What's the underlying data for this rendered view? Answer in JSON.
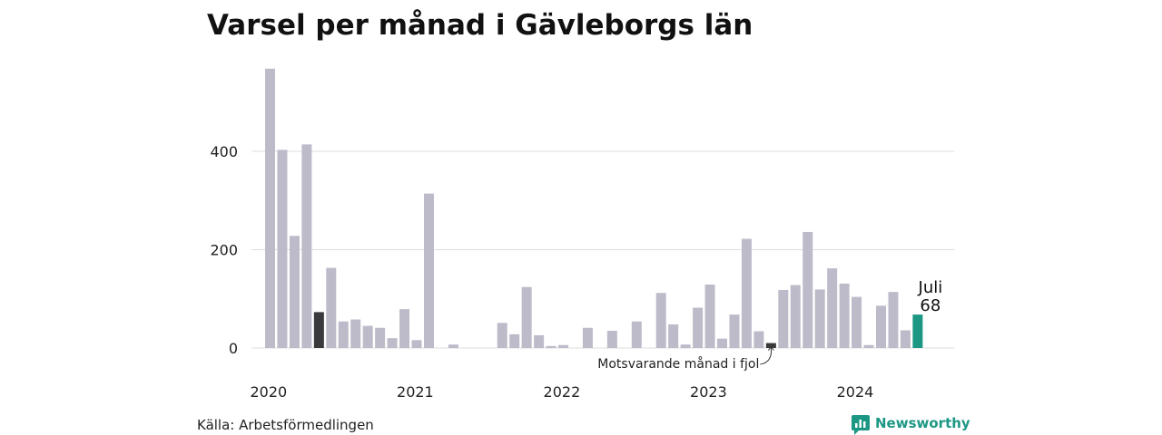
{
  "chart_data": {
    "type": "bar",
    "title": "Varsel per månad i Gävleborgs län",
    "xlabel": "",
    "ylabel": "",
    "ylim": [
      0,
      575
    ],
    "y_ticks": [
      0,
      200,
      400
    ],
    "x_ticks": [
      {
        "label": "2020",
        "index": 0
      },
      {
        "label": "2021",
        "index": 12
      },
      {
        "label": "2022",
        "index": 24
      },
      {
        "label": "2023",
        "index": 36
      },
      {
        "label": "2024",
        "index": 48
      }
    ],
    "values": [
      568,
      403,
      228,
      414,
      73,
      163,
      54,
      58,
      45,
      41,
      20,
      79,
      16,
      314,
      0,
      7,
      0,
      0,
      0,
      51,
      28,
      124,
      26,
      4,
      6,
      0,
      41,
      0,
      35,
      0,
      54,
      0,
      112,
      48,
      7,
      82,
      129,
      19,
      68,
      222,
      34,
      10,
      118,
      128,
      236,
      119,
      162,
      131,
      104,
      6,
      86,
      114,
      36,
      68
    ],
    "highlight_previous_year_index": 41,
    "highlight_previous_year_extra_index": 4,
    "highlight_current_index": 53,
    "highlight_label_month": "Juli",
    "highlight_label_value": "68",
    "annotation": "Motsvarande månad i fjol",
    "grid": true,
    "legend": "none",
    "colors": {
      "bar": "#bdbbc9",
      "previous": "#3a3a3c",
      "current": "#1b9784",
      "grid": "#dddddd",
      "brand": "#1b9784"
    }
  },
  "source": "Källa: Arbetsförmedlingen",
  "brand": {
    "name": "Newsworthy",
    "icon": "chart-icon"
  }
}
